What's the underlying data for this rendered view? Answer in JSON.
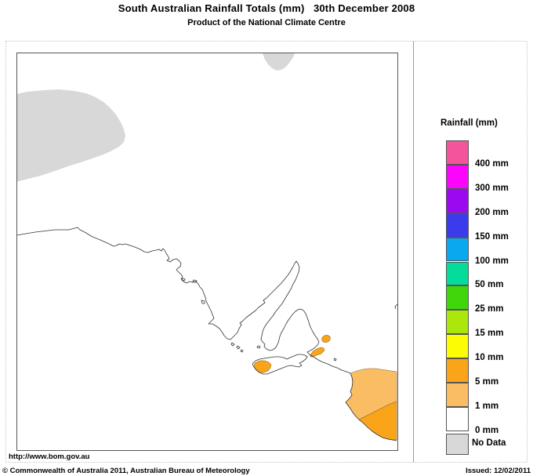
{
  "header": {
    "title": "South Australian Rainfall Totals (mm)   30th December 2008",
    "subtitle": "Product of the National Climate Centre"
  },
  "legend": {
    "title": "Rainfall (mm)",
    "entries": [
      {
        "label": "400 mm",
        "color": "#F4549B"
      },
      {
        "label": "300 mm",
        "color": "#FC05FC"
      },
      {
        "label": "200 mm",
        "color": "#9B09F0"
      },
      {
        "label": "150 mm",
        "color": "#3B3BEB"
      },
      {
        "label": "100 mm",
        "color": "#09A9EF"
      },
      {
        "label": "50 mm",
        "color": "#04DC9C"
      },
      {
        "label": "25 mm",
        "color": "#40D60C"
      },
      {
        "label": "15 mm",
        "color": "#ACE70C"
      },
      {
        "label": "10 mm",
        "color": "#FCFC04"
      },
      {
        "label": "5 mm",
        "color": "#FAA41A"
      },
      {
        "label": "1 mm",
        "color": "#FBBD64"
      },
      {
        "label": "0 mm",
        "color": "#FFFFFF"
      },
      {
        "label": "No Data",
        "color": "#D8D8D8"
      }
    ]
  },
  "map": {
    "colors": {
      "no_data": "#D8D8D8",
      "rain_1_5": "#FBBD64",
      "rain_5_10": "#FAA41A",
      "sea_land": "#FFFFFF"
    },
    "rainfall_regions": [
      {
        "area": "far-northwest",
        "value": "No Data"
      },
      {
        "area": "north-central-edge",
        "value": "No Data"
      },
      {
        "area": "upper-southeast",
        "value": "1-5 mm"
      },
      {
        "area": "lower-southeast-corner",
        "value": "5-10 mm"
      },
      {
        "area": "fleurieu-peninsula-patches",
        "value": "5-10 mm"
      },
      {
        "area": "west-kangaroo-island",
        "value": "5-10 mm"
      },
      {
        "area": "rest-of-state",
        "value": "0-1 mm"
      }
    ]
  },
  "footer": {
    "url": "http://www.bom.gov.au",
    "copyright": "© Commonwealth of Australia 2011, Australian Bureau of Meteorology",
    "issued": "Issued: 12/02/2011"
  }
}
